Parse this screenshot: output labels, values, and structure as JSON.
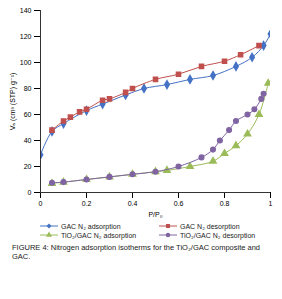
{
  "chart_data": {
    "type": "line",
    "caption": "FIGURE 4: Nitrogen adsorption isotherms for the TiO₂/GAC composite and GAC.",
    "x_label": "P/P₀",
    "y_label": "Vₐ (cm³ (STP) g⁻¹)",
    "xlim": [
      0,
      1
    ],
    "xticks": [
      0,
      0.2,
      0.4,
      0.6,
      0.8,
      1
    ],
    "ylim": [
      0,
      140
    ],
    "yticks": [
      0,
      20,
      40,
      60,
      80,
      100,
      120,
      140
    ],
    "grid": false,
    "legend": "bottom",
    "series": [
      {
        "name": "GAC N₂ adsorption",
        "color": "#4472c4",
        "marker": "diamond",
        "line_style": "solid",
        "x": [
          0,
          0.05,
          0.1,
          0.2,
          0.27,
          0.37,
          0.45,
          0.55,
          0.65,
          0.75,
          0.85,
          0.92,
          0.97,
          1.0
        ],
        "values": [
          29,
          47,
          53,
          63,
          68,
          75,
          80,
          83,
          87,
          90,
          97,
          104,
          113,
          122
        ]
      },
      {
        "name": "GAC N₂ desorption",
        "color": "#c0504d",
        "marker": "square",
        "line_style": "solid",
        "x": [
          0.05,
          0.1,
          0.13,
          0.17,
          0.2,
          0.27,
          0.3,
          0.37,
          0.4,
          0.5,
          0.6,
          0.7,
          0.8,
          0.87,
          0.95
        ],
        "values": [
          48,
          55,
          58,
          62,
          64,
          71,
          72,
          77,
          80,
          87,
          91,
          97,
          101,
          106,
          113
        ]
      },
      {
        "name": "TiO₂/GAC N₂ adsorption",
        "color": "#9bbb59",
        "marker": "triangle",
        "line_style": "solid",
        "x": [
          0.05,
          0.1,
          0.2,
          0.3,
          0.4,
          0.5,
          0.55,
          0.65,
          0.75,
          0.8,
          0.85,
          0.9,
          0.95,
          0.99
        ],
        "values": [
          7,
          8,
          10,
          12,
          14,
          16,
          17,
          20,
          24,
          30,
          36,
          45,
          60,
          84
        ]
      },
      {
        "name": "TiO₂/GAC N₂ desorption",
        "color": "#8064a2",
        "marker": "circle",
        "line_style": "solid",
        "x": [
          0.05,
          0.1,
          0.2,
          0.3,
          0.4,
          0.5,
          0.6,
          0.7,
          0.75,
          0.78,
          0.82,
          0.85,
          0.9,
          0.93,
          0.96,
          0.97
        ],
        "values": [
          7.5,
          8,
          10,
          12,
          14,
          16,
          20,
          27,
          33,
          40,
          48,
          55,
          60,
          64,
          72,
          76
        ]
      }
    ]
  }
}
